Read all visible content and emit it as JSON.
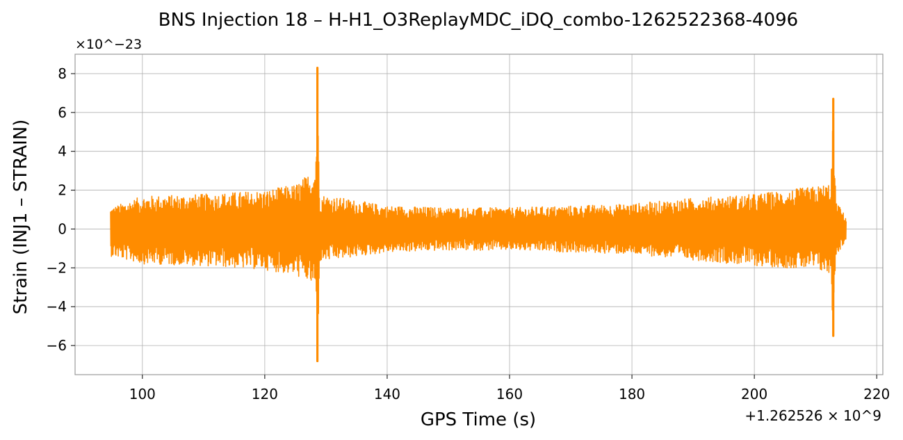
{
  "colors": {
    "series": "#ff8c00",
    "grid": "#b0b0b0",
    "frame": "#999999"
  },
  "chart_data": {
    "type": "line",
    "title": "BNS Injection 18 – H-H1_O3ReplayMDC_iDQ_combo-1262522368-4096",
    "xlabel": "GPS Time (s)",
    "ylabel": "Strain (INJ1 – STRAIN)",
    "x_offset_label": "+1.262526 × 10^9",
    "y_multiplier_label": "×10^−23",
    "xlim": [
      89,
      221
    ],
    "ylim": [
      -7.5,
      9.0
    ],
    "xticks": [
      100,
      120,
      140,
      160,
      180,
      200,
      220
    ],
    "yticks": [
      -6,
      -4,
      -2,
      0,
      2,
      4,
      6,
      8
    ],
    "xtick_labels": [
      "100",
      "120",
      "140",
      "160",
      "180",
      "200",
      "220"
    ],
    "ytick_labels": [
      "−6",
      "−4",
      "−2",
      "0",
      "2",
      "4",
      "6",
      "8"
    ],
    "grid": true,
    "series": [
      {
        "x_range": [
          94.8,
          215.0
        ],
        "envelope": [
          {
            "x": 94.8,
            "max": 1.1,
            "min": -1.4
          },
          {
            "x": 100,
            "max": 1.7,
            "min": -1.8
          },
          {
            "x": 110,
            "max": 1.8,
            "min": -1.9
          },
          {
            "x": 120,
            "max": 2.0,
            "min": -2.1
          },
          {
            "x": 125,
            "max": 2.3,
            "min": -2.4
          },
          {
            "x": 127,
            "max": 2.8,
            "min": -2.7
          },
          {
            "x": 128.3,
            "max": 3.4,
            "min": -3.1
          },
          {
            "x": 128.6,
            "max": 8.3,
            "min": -6.8
          },
          {
            "x": 129.0,
            "max": 1.8,
            "min": -1.7
          },
          {
            "x": 140,
            "max": 1.2,
            "min": -1.2
          },
          {
            "x": 150,
            "max": 1.1,
            "min": -1.1
          },
          {
            "x": 160,
            "max": 1.1,
            "min": -1.1
          },
          {
            "x": 170,
            "max": 1.2,
            "min": -1.2
          },
          {
            "x": 180,
            "max": 1.3,
            "min": -1.3
          },
          {
            "x": 190,
            "max": 1.6,
            "min": -1.6
          },
          {
            "x": 200,
            "max": 1.8,
            "min": -1.9
          },
          {
            "x": 205,
            "max": 2.0,
            "min": -2.0
          },
          {
            "x": 210,
            "max": 2.2,
            "min": -2.1
          },
          {
            "x": 212.5,
            "max": 2.4,
            "min": -2.4
          },
          {
            "x": 212.9,
            "max": 6.7,
            "min": -5.5
          },
          {
            "x": 213.3,
            "max": 1.5,
            "min": -1.4
          },
          {
            "x": 215.0,
            "max": 0.6,
            "min": -0.6
          }
        ]
      }
    ]
  }
}
